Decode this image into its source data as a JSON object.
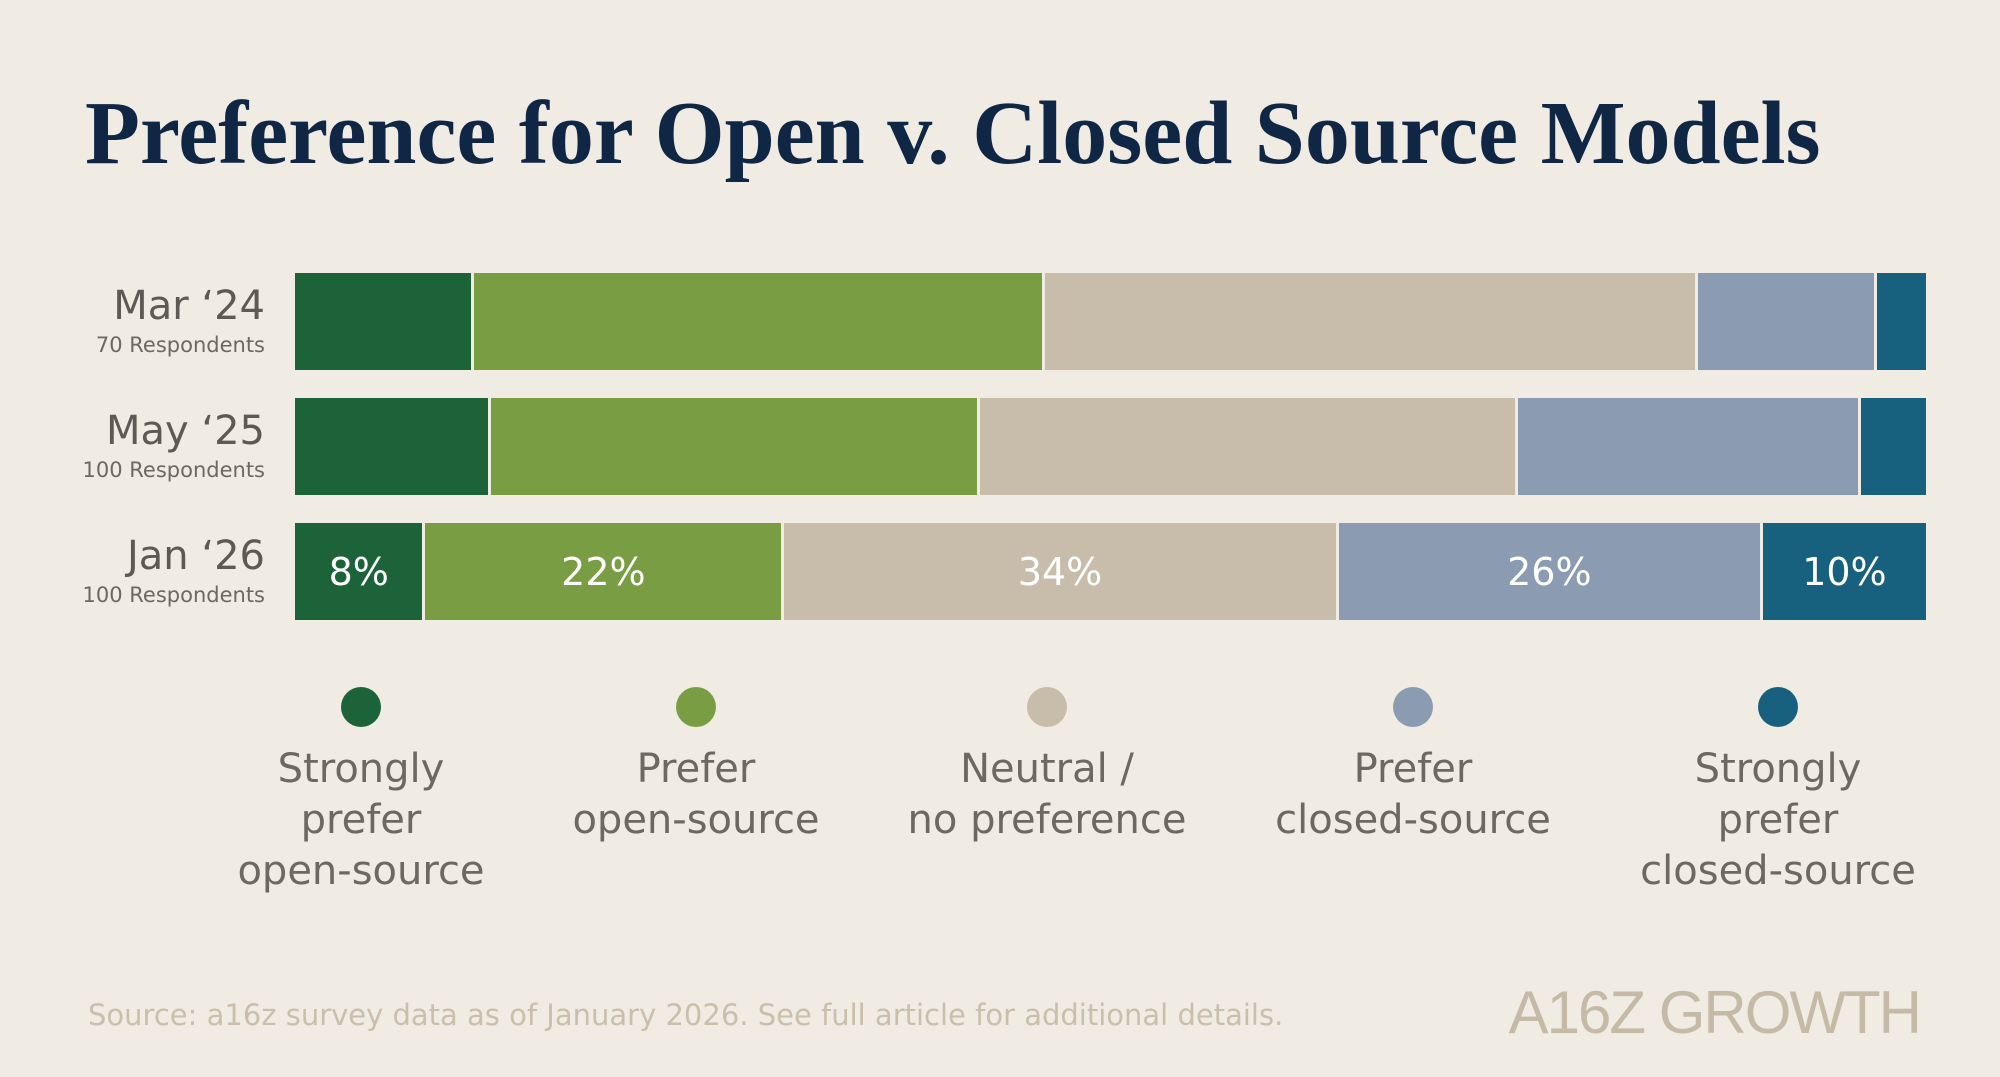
{
  "chart_data": {
    "type": "stacked_bar_horizontal",
    "title": "Preference for Open v. Closed Source Models",
    "categories": [
      "Mar ‘24",
      "May ‘25",
      "Jan ‘26"
    ],
    "category_subtitles": [
      "70 Respondents",
      "100 Respondents",
      "100 Respondents"
    ],
    "xlim": [
      0,
      100
    ],
    "series": [
      {
        "name": "Strongly\nprefer\nopen-source",
        "color": "#1c6339",
        "values": [
          11,
          12,
          8
        ],
        "value_labels": [
          null,
          null,
          "8%"
        ]
      },
      {
        "name": "Prefer\nopen-source",
        "color": "#789d43",
        "values": [
          35,
          30,
          22
        ],
        "value_labels": [
          null,
          null,
          "22%"
        ]
      },
      {
        "name": "Neutral /\nno preference",
        "color": "#c8bdaa",
        "values": [
          40,
          33,
          34
        ],
        "value_labels": [
          null,
          null,
          "34%"
        ]
      },
      {
        "name": "Prefer\nclosed-source",
        "color": "#8a9bb2",
        "values": [
          11,
          21,
          26
        ],
        "value_labels": [
          null,
          null,
          "26%"
        ]
      },
      {
        "name": "Strongly\nprefer\nclosed-source",
        "color": "#17617f",
        "values": [
          3,
          4,
          10
        ],
        "value_labels": [
          null,
          null,
          "10%"
        ]
      }
    ],
    "source": "Source: a16z survey data as of January 2026. See full article for additional details.",
    "logo": "A16Z GROWTH"
  }
}
